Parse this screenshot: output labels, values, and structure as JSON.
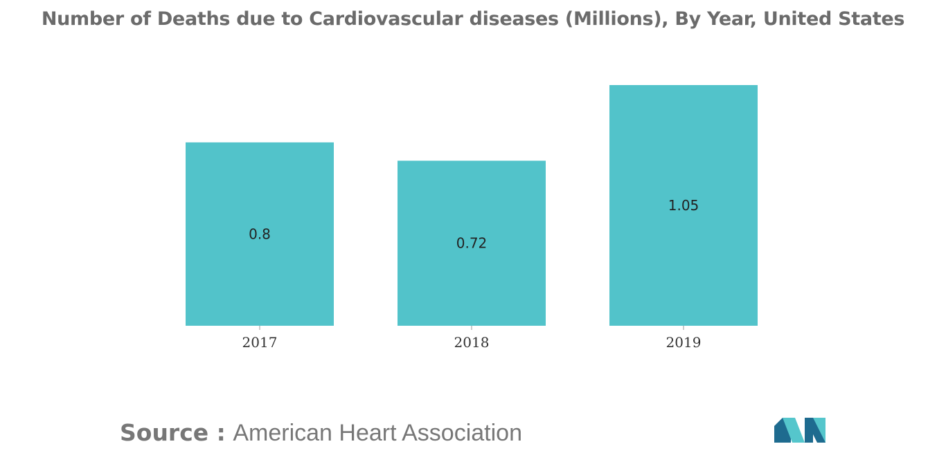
{
  "title": "Number of Deaths due to Cardiovascular diseases (Millions), By Year, United States",
  "source": {
    "key": "Source :",
    "value": "American Heart Association"
  },
  "colors": {
    "bar": "#52C3CA",
    "logo_dark": "#1E6B8F",
    "logo_light": "#55C6CC"
  },
  "chart_data": {
    "type": "bar",
    "title": "Number of Deaths due to Cardiovascular diseases (Millions), By Year, United States",
    "categories": [
      "2017",
      "2018",
      "2019"
    ],
    "values": [
      0.8,
      0.72,
      1.05
    ],
    "data_labels": [
      "0.8",
      "0.72",
      "1.05"
    ],
    "xlabel": "",
    "ylabel": "",
    "ylim": [
      0,
      1.05
    ],
    "grid": false,
    "legend": "none"
  }
}
